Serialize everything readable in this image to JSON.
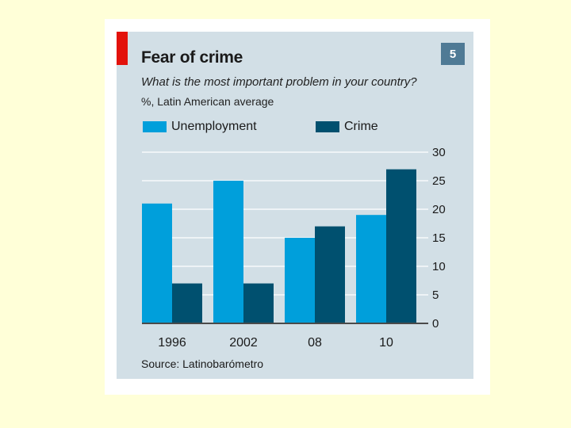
{
  "colors": {
    "unemployment": "#009fdb",
    "crime": "#00506f",
    "badge": "#4f7a95",
    "accent": "#e3120b"
  },
  "badge_number": "5",
  "chart_data": {
    "type": "bar",
    "title": "Fear of crime",
    "subtitle": "What is the most important problem in your country?",
    "unit_note": "%, Latin American average",
    "categories": [
      "1996",
      "2002",
      "08",
      "10"
    ],
    "series": [
      {
        "name": "Unemployment",
        "values": [
          21,
          25,
          15,
          19
        ]
      },
      {
        "name": "Crime",
        "values": [
          7,
          7,
          17,
          27
        ]
      }
    ],
    "yticks": [
      0,
      5,
      10,
      15,
      20,
      25,
      30
    ],
    "ylim": [
      0,
      30
    ],
    "xlabel": "",
    "ylabel": "",
    "grid": true,
    "legend": "top",
    "axis_side": "right",
    "source": "Source: Latinobarómetro"
  }
}
